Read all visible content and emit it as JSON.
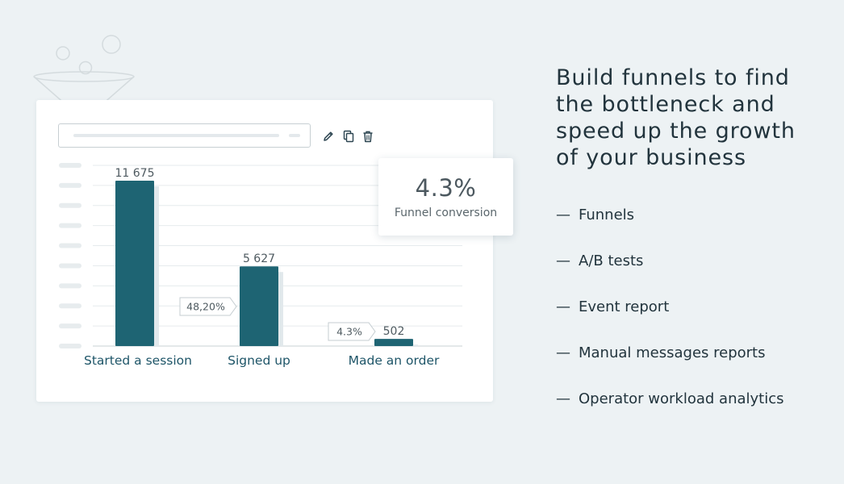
{
  "headline": "Build funnels to find the bottleneck and speed up the growth of your business",
  "features": [
    {
      "dash": "—",
      "label": "Funnels"
    },
    {
      "dash": "—",
      "label": "A/B tests"
    },
    {
      "dash": "—",
      "label": "Event report"
    },
    {
      "dash": "—",
      "label": "Manual messages reports"
    },
    {
      "dash": "—",
      "label": "Operator workload analytics"
    }
  ],
  "tooltip": {
    "value": "4.3%",
    "caption": "Funnel conversion"
  },
  "toolbar_icons": [
    "pencil-icon",
    "copy-icon",
    "trash-icon"
  ],
  "colors": {
    "bar": "#1e6473",
    "background": "#edf2f4",
    "text": "#22343d",
    "label": "#1e5568"
  },
  "chart_data": {
    "type": "bar",
    "categories": [
      "Started a session",
      "Signed up",
      "Made an order"
    ],
    "values": [
      11675,
      5627,
      502
    ],
    "value_labels": [
      "11 675",
      "5 627",
      "502"
    ],
    "step_conversions": [
      "48,20%",
      "4.3%"
    ],
    "ylim": [
      0,
      11675
    ],
    "grid": true
  }
}
